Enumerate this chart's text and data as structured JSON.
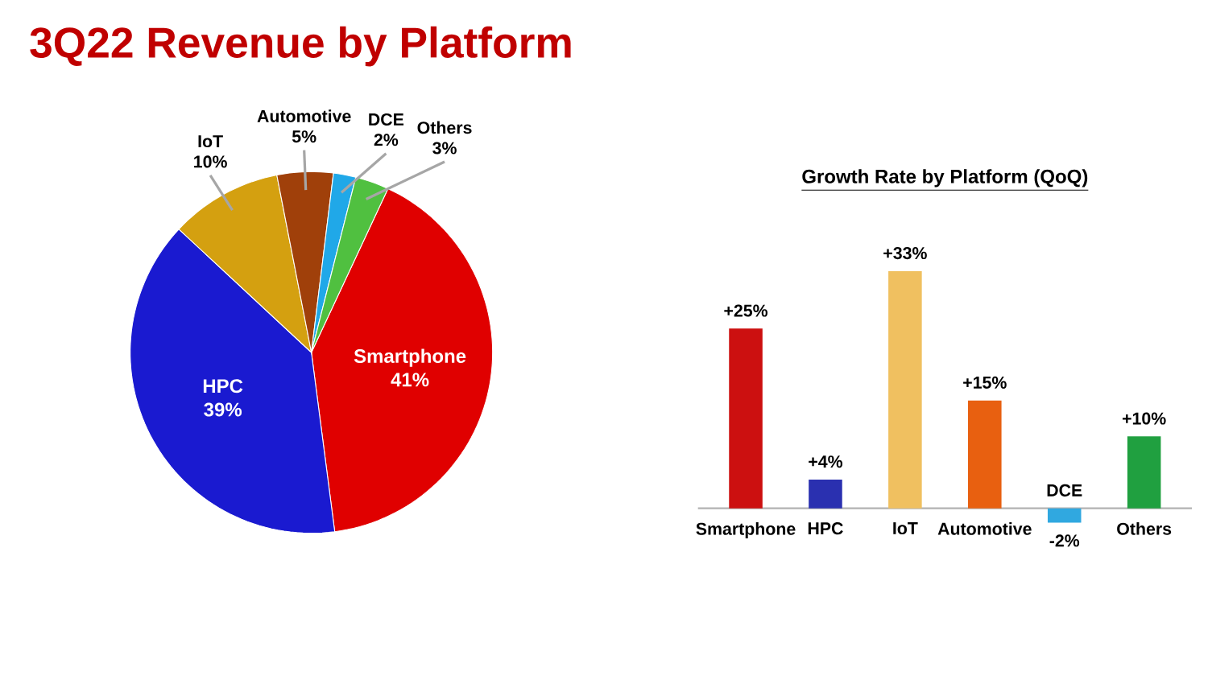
{
  "chart_data": [
    {
      "type": "pie",
      "title": "3Q22 Revenue by Platform",
      "categories": [
        "Smartphone",
        "HPC",
        "IoT",
        "Automotive",
        "DCE",
        "Others"
      ],
      "values": [
        41,
        39,
        10,
        5,
        2,
        3
      ],
      "value_labels": [
        "41%",
        "39%",
        "10%",
        "5%",
        "2%",
        "3%"
      ],
      "colors": [
        "#e00000",
        "#1a1ad0",
        "#d4a010",
        "#a0400a",
        "#20a8e8",
        "#50c040"
      ]
    },
    {
      "type": "bar",
      "title": "Growth Rate by Platform (QoQ)",
      "categories": [
        "Smartphone",
        "HPC",
        "IoT",
        "Automotive",
        "DCE",
        "Others"
      ],
      "values": [
        25,
        4,
        33,
        15,
        -2,
        10
      ],
      "value_labels": [
        "+25%",
        "+4%",
        "+33%",
        "+15%",
        "-2%",
        "+10%"
      ],
      "colors": [
        "#cc1010",
        "#2a30b0",
        "#f0c060",
        "#e86010",
        "#30a8e0",
        "#20a040"
      ]
    }
  ]
}
